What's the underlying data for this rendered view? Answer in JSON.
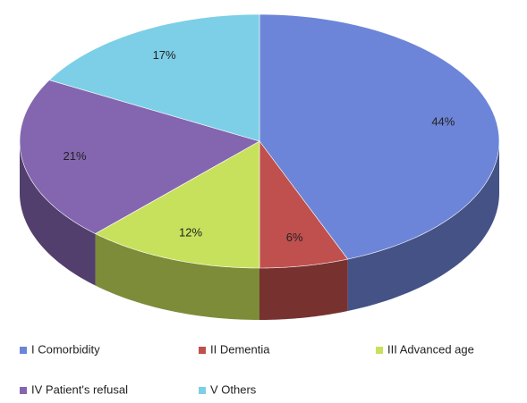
{
  "chart_data": {
    "type": "pie3d",
    "categories": [
      "I Comorbidity",
      "II Dementia",
      "III Advanced age",
      "IV Patient's refusal",
      "V Others"
    ],
    "values": [
      44,
      6,
      12,
      21,
      17
    ],
    "value_labels": [
      "44%",
      "6%",
      "12%",
      "21%",
      "17%"
    ],
    "colors": [
      "#6d85d8",
      "#c0504d",
      "#c8e15c",
      "#8466b0",
      "#7ccfe6"
    ]
  }
}
